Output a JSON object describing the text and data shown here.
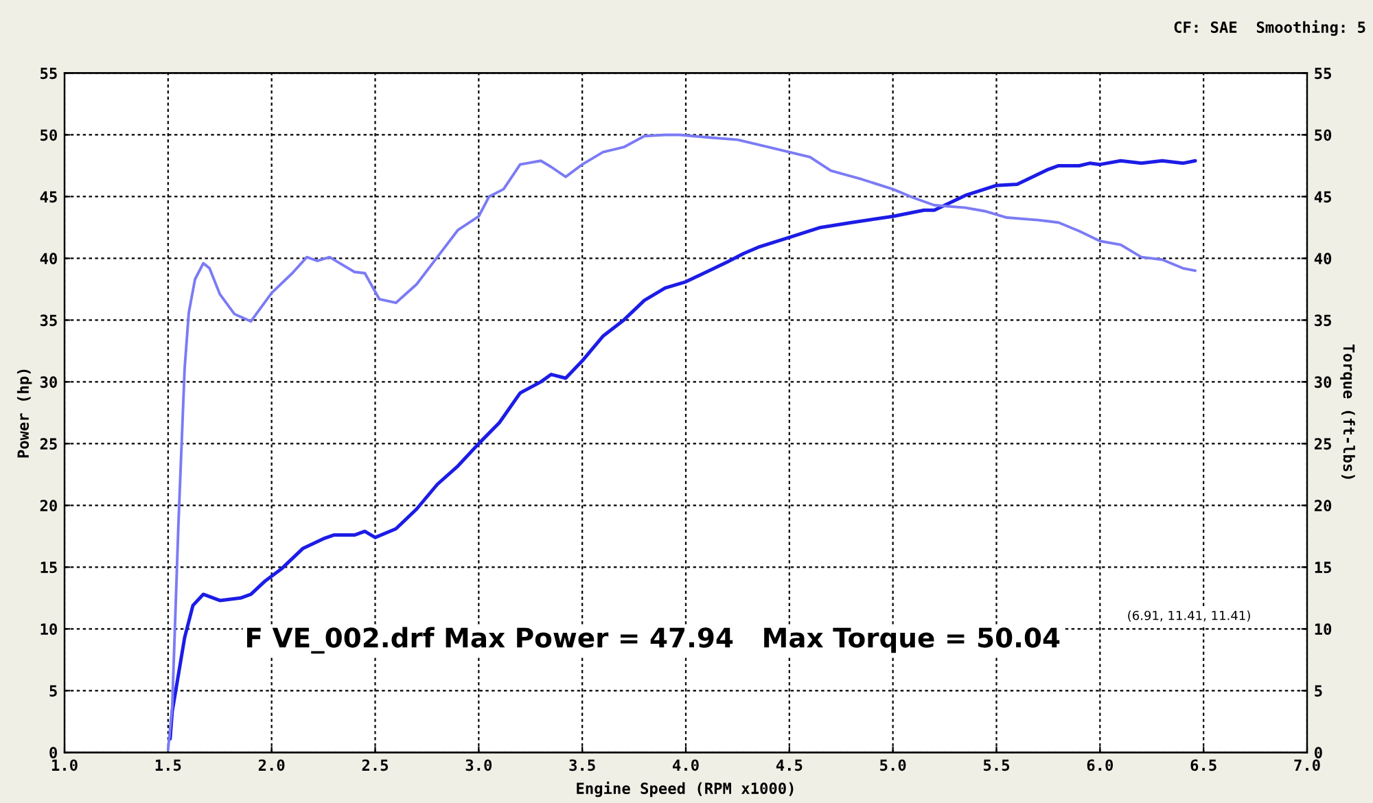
{
  "chart_data": {
    "type": "line",
    "xlabel": "Engine Speed (RPM x1000)",
    "ylabel": "Power (hp)",
    "y2label": "Torque (ft-lbs)",
    "xlim": [
      1.0,
      7.0
    ],
    "xticks": [
      {
        "value": 1.0,
        "label": "1.0"
      },
      {
        "value": 1.5,
        "label": "1.5"
      },
      {
        "value": 2.0,
        "label": "2.0"
      },
      {
        "value": 2.5,
        "label": "2.5"
      },
      {
        "value": 3.0,
        "label": "3.0"
      },
      {
        "value": 3.5,
        "label": "3.5"
      },
      {
        "value": 4.0,
        "label": "4.0"
      },
      {
        "value": 4.5,
        "label": "4.5"
      },
      {
        "value": 5.0,
        "label": "5.0"
      },
      {
        "value": 5.5,
        "label": "5.5"
      },
      {
        "value": 6.0,
        "label": "6.0"
      },
      {
        "value": 6.5,
        "label": "6.5"
      },
      {
        "value": 7.0,
        "label": "7.0"
      }
    ],
    "ylim": [
      0,
      55
    ],
    "yticks": [
      0,
      5,
      10,
      15,
      20,
      25,
      30,
      35,
      40,
      45,
      50,
      55
    ],
    "y2lim": [
      0,
      55
    ],
    "y2ticks": [
      0,
      5,
      10,
      15,
      20,
      25,
      30,
      35,
      40,
      45,
      50,
      55
    ],
    "grid": true,
    "line_style": "solid",
    "series": [
      {
        "color": "#1c1ce6",
        "axis": "y",
        "x": [
          1.51,
          1.52,
          1.58,
          1.62,
          1.67,
          1.75,
          1.85,
          1.9,
          1.97,
          2.05,
          2.15,
          2.25,
          2.3,
          2.4,
          2.45,
          2.5,
          2.6,
          2.7,
          2.8,
          2.9,
          3.0,
          3.1,
          3.2,
          3.3,
          3.35,
          3.42,
          3.5,
          3.6,
          3.7,
          3.8,
          3.9,
          4.0,
          4.2,
          4.28,
          4.35,
          4.5,
          4.65,
          4.8,
          5.0,
          5.15,
          5.2,
          5.35,
          5.5,
          5.6,
          5.75,
          5.8,
          5.9,
          5.95,
          6.0,
          6.1,
          6.2,
          6.3,
          6.4,
          6.46
        ],
        "values": [
          1.1,
          3.3,
          9.3,
          11.9,
          12.8,
          12.3,
          12.5,
          12.8,
          13.9,
          14.9,
          16.5,
          17.3,
          17.6,
          17.6,
          17.9,
          17.4,
          18.1,
          19.7,
          21.7,
          23.2,
          25.0,
          26.7,
          29.1,
          30.0,
          30.6,
          30.3,
          31.7,
          33.7,
          35.0,
          36.6,
          37.6,
          38.1,
          39.7,
          40.4,
          40.9,
          41.7,
          42.5,
          42.9,
          43.4,
          43.9,
          43.9,
          45.1,
          45.9,
          46.0,
          47.2,
          47.5,
          47.5,
          47.7,
          47.6,
          47.9,
          47.7,
          47.9,
          47.7,
          47.9
        ]
      },
      {
        "color": "#7b7bf5",
        "axis": "y2",
        "x": [
          1.5,
          1.52,
          1.55,
          1.58,
          1.6,
          1.63,
          1.67,
          1.7,
          1.75,
          1.82,
          1.9,
          2.0,
          2.1,
          2.17,
          2.22,
          2.28,
          2.4,
          2.45,
          2.52,
          2.6,
          2.7,
          2.8,
          2.9,
          3.0,
          3.05,
          3.12,
          3.2,
          3.3,
          3.35,
          3.42,
          3.5,
          3.6,
          3.7,
          3.8,
          3.9,
          3.97,
          4.1,
          4.25,
          4.4,
          4.5,
          4.6,
          4.7,
          4.85,
          5.0,
          5.1,
          5.2,
          5.35,
          5.45,
          5.55,
          5.7,
          5.8,
          5.9,
          6.0,
          6.1,
          6.2,
          6.3,
          6.4,
          6.46
        ],
        "values": [
          0.2,
          3.7,
          18.5,
          31.1,
          35.6,
          38.3,
          39.6,
          39.2,
          37.1,
          35.5,
          34.9,
          37.2,
          38.8,
          40.1,
          39.8,
          40.1,
          38.9,
          38.8,
          36.7,
          36.4,
          37.9,
          40.1,
          42.3,
          43.4,
          45.0,
          45.6,
          47.6,
          47.9,
          47.4,
          46.6,
          47.6,
          48.6,
          49.0,
          49.9,
          50.0,
          50.0,
          49.8,
          49.6,
          49.0,
          48.6,
          48.2,
          47.1,
          46.4,
          45.6,
          44.9,
          44.3,
          44.1,
          43.8,
          43.3,
          43.1,
          42.9,
          42.2,
          41.4,
          41.1,
          40.1,
          39.9,
          39.2,
          39.0
        ]
      }
    ],
    "annotations": [
      "CF: SAE  Smoothing: 5",
      "F VE_002.drf Max Power = 47.94   Max Torque = 50.04",
      "(6.91, 11.41, 11.41)"
    ]
  }
}
